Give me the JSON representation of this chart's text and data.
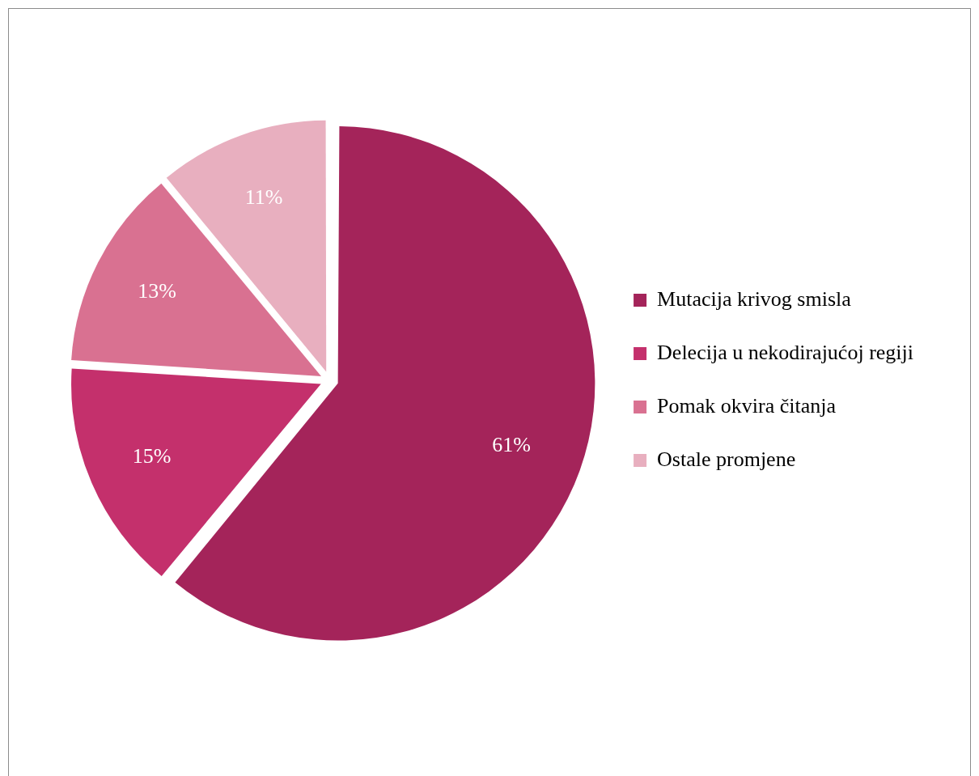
{
  "chart_data": {
    "type": "pie",
    "categories": [
      "Mutacija krivog smisla",
      "Delecija u nekodirajućoj regiji",
      "Pomak okvira čitanja",
      "Ostale promjene"
    ],
    "values": [
      61,
      15,
      13,
      11
    ],
    "colors": [
      "#a4245a",
      "#c4306c",
      "#d97191",
      "#e8afbf"
    ],
    "value_labels": [
      "61%",
      "15%",
      "13%",
      "11%"
    ],
    "legend": "right"
  }
}
